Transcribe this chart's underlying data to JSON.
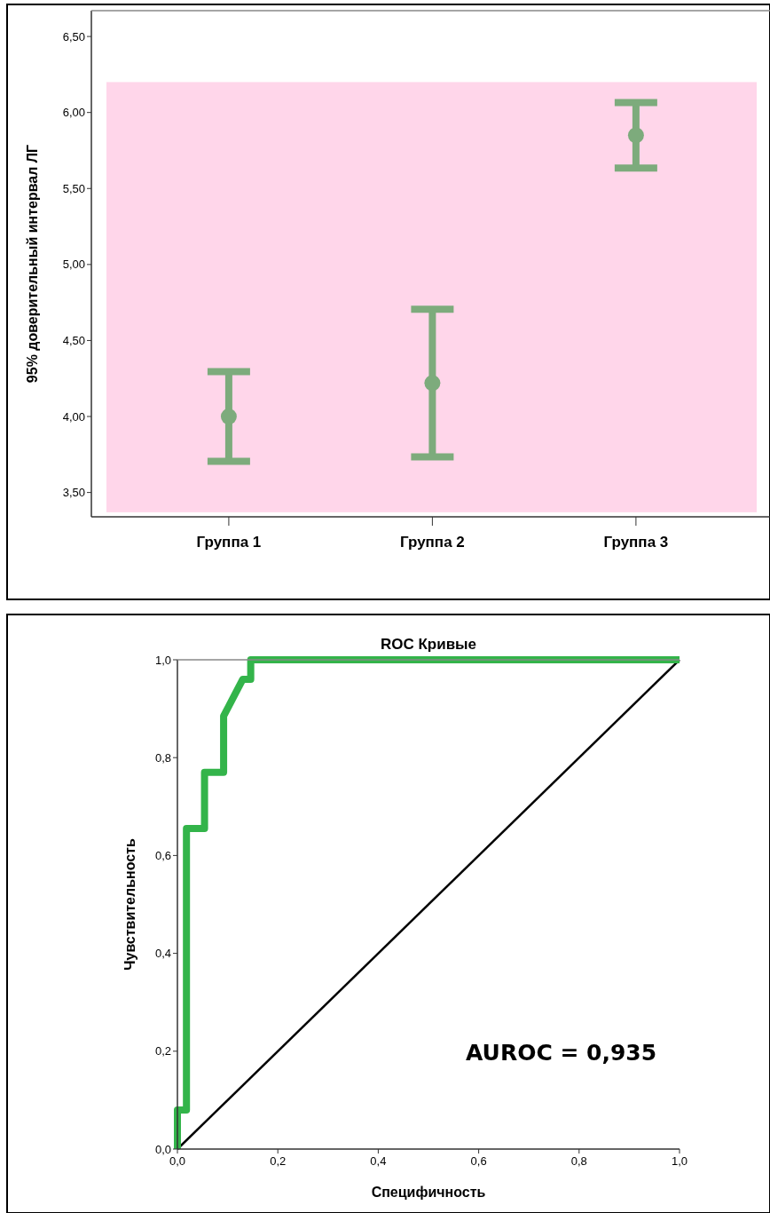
{
  "chart_data": [
    {
      "type": "scatter",
      "categories": [
        "Группа 1",
        "Группа 2",
        "Группа 3"
      ],
      "values": [
        4.0,
        4.22,
        5.85
      ],
      "errors": [
        0.295,
        0.485,
        0.215
      ],
      "color": "#7dab7c",
      "marker": "circle",
      "ylabel": "95% доверительный интервал ЛГ",
      "ylim": [
        3.34,
        6.67
      ],
      "yticks": [
        {
          "value": 3.5,
          "label": "3,50"
        },
        {
          "value": 4,
          "label": "4,00"
        },
        {
          "value": 4.5,
          "label": "4,50"
        },
        {
          "value": 5,
          "label": "5,00"
        },
        {
          "value": 5.5,
          "label": "5,50"
        },
        {
          "value": 6,
          "label": "6,00"
        },
        {
          "value": 6.5,
          "label": "6,50"
        }
      ],
      "bands": [
        {
          "axis": "y",
          "from": 3.37,
          "to": 6.2,
          "color": "#ffd6ea"
        }
      ]
    },
    {
      "type": "line",
      "title": "ROC Кривые",
      "xlabel": "Специфичность",
      "ylabel": "Чувствительность",
      "xlim": [
        0,
        1
      ],
      "ylim": [
        0,
        1
      ],
      "xticks": [
        {
          "value": 0,
          "label": "0,0"
        },
        {
          "value": 0.2,
          "label": "0,2"
        },
        {
          "value": 0.4,
          "label": "0,4"
        },
        {
          "value": 0.6,
          "label": "0,6"
        },
        {
          "value": 0.8,
          "label": "0,8"
        },
        {
          "value": 1,
          "label": "1,0"
        }
      ],
      "yticks": [
        {
          "value": 0,
          "label": "0,0"
        },
        {
          "value": 0.2,
          "label": "0,2"
        },
        {
          "value": 0.4,
          "label": "0,4"
        },
        {
          "value": 0.6,
          "label": "0,6"
        },
        {
          "value": 0.8,
          "label": "0,8"
        },
        {
          "value": 1,
          "label": "1,0"
        }
      ],
      "series": [
        {
          "color": "#000000",
          "x": [
            0,
            1
          ],
          "values": [
            0,
            1
          ]
        },
        {
          "color": "#33b44a",
          "x": [
            0,
            0,
            0.018,
            0.018,
            0.054,
            0.054,
            0.092,
            0.092,
            0.13,
            0.146,
            0.146,
            1
          ],
          "values": [
            0,
            0.08,
            0.08,
            0.655,
            0.655,
            0.77,
            0.77,
            0.885,
            0.96,
            0.96,
            1,
            1
          ]
        }
      ],
      "annotations": [
        "AUROC = 0,935"
      ]
    }
  ]
}
